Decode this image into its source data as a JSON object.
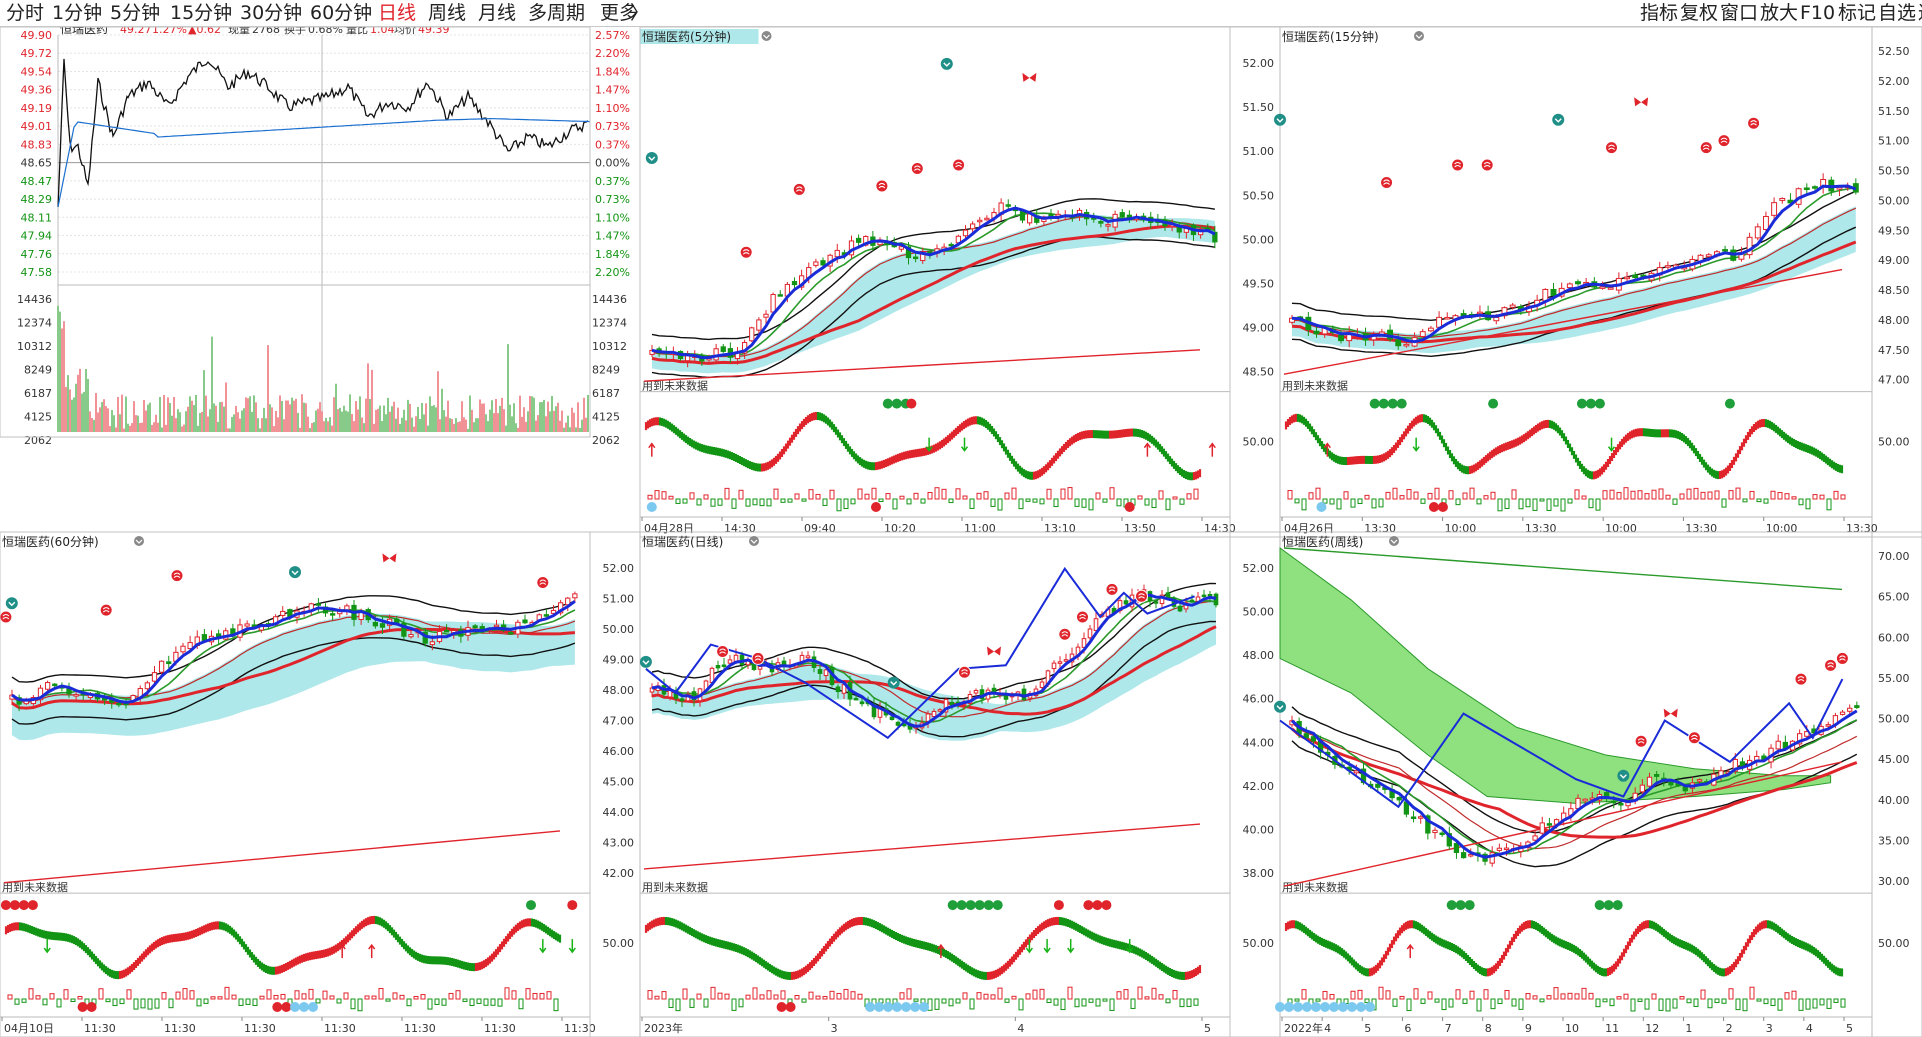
{
  "toolbar": {
    "periods": [
      {
        "label": "分时",
        "active": false
      },
      {
        "label": "1分钟",
        "active": false
      },
      {
        "label": "5分钟",
        "active": false
      },
      {
        "label": "15分钟",
        "active": false
      },
      {
        "label": "30分钟",
        "active": false
      },
      {
        "label": "60分钟",
        "active": false
      },
      {
        "label": "日线",
        "active": true
      },
      {
        "label": "周线",
        "active": false
      },
      {
        "label": "月线",
        "active": false
      },
      {
        "label": "多周期",
        "active": false
      },
      {
        "label": "更多",
        "active": false
      }
    ],
    "more_arrow": "〉",
    "right_tools": [
      "指标",
      "复权",
      "窗口",
      "放大",
      "F10",
      "标记",
      "自选",
      "返回"
    ]
  },
  "colors": {
    "up": "#e0242c",
    "down": "#129414",
    "ma": "#1b6fcf",
    "blue": "#1a2bd8",
    "grid": "#d6d6d6",
    "band": "#aee8ea"
  },
  "minute_panel": {
    "stock_name": "恒瑞医药",
    "price": "49.27",
    "change_pct": "1.27%",
    "change": "▲0.62",
    "volume_label": "现量",
    "volume": "2768",
    "turnover_label": "换手",
    "turnover": "0.68%",
    "vol_ratio_label": "量比",
    "vol_ratio": "1.04",
    "avg_label": "均价",
    "avg": "49.39",
    "price_axis": [
      "49.90",
      "49.72",
      "49.54",
      "49.36",
      "49.19",
      "49.01",
      "48.83",
      "48.65",
      "48.47",
      "48.29",
      "48.11",
      "47.94",
      "47.76",
      "47.58"
    ],
    "pct_axis": [
      "2.57%",
      "2.20%",
      "1.84%",
      "1.47%",
      "1.10%",
      "0.73%",
      "0.37%",
      "0.00%",
      "0.37%",
      "0.73%",
      "1.10%",
      "1.47%",
      "1.84%",
      "2.20%"
    ],
    "volume_axis": [
      "14436",
      "12374",
      "10312",
      "8249",
      "6187",
      "4125",
      "2062"
    ],
    "volume_axis_right": [
      "14436",
      "12374",
      "10312",
      "8249",
      "6187",
      "4125",
      "2062"
    ]
  },
  "charts": [
    {
      "id": "p5",
      "title": "恒瑞医药(5分钟)",
      "left_axis": [],
      "right_axis": [],
      "indicator_axis": [],
      "future_label": "用到未来数据",
      "x_labels": [
        "04月28日",
        "14:30",
        "09:40",
        "10:20",
        "11:00",
        "13:10",
        "13:50",
        "14:30"
      ]
    },
    {
      "id": "p15",
      "title": "恒瑞医药(15分钟)",
      "left_axis": [
        "52.00",
        "51.50",
        "51.00",
        "50.50",
        "50.00",
        "49.50",
        "49.00",
        "48.50"
      ],
      "right_axis": [
        "52.50",
        "52.00",
        "51.50",
        "51.00",
        "50.50",
        "50.00",
        "49.50",
        "49.00",
        "48.50",
        "48.00",
        "47.50",
        "47.00"
      ],
      "indicator_axis": [
        "50.00"
      ],
      "indicator_axis_right": [
        "50.00"
      ],
      "future_label": "用到未来数据",
      "x_labels": [
        "04月26日",
        "13:30",
        "10:00",
        "13:30",
        "10:00",
        "13:30",
        "10:00",
        "13:30"
      ]
    },
    {
      "id": "p60",
      "title": "恒瑞医药(60分钟)",
      "left_axis": [],
      "right_axis": [],
      "indicator_axis": [],
      "future_label": "用到未来数据",
      "x_labels": [
        "04月10日",
        "11:30",
        "11:30",
        "11:30",
        "11:30",
        "11:30",
        "11:30",
        "11:30"
      ]
    },
    {
      "id": "pd",
      "title": "恒瑞医药(日线)",
      "left_axis": [
        "52.00",
        "51.00",
        "50.00",
        "49.00",
        "48.00",
        "47.00",
        "46.00",
        "45.00",
        "44.00",
        "43.00",
        "42.00"
      ],
      "right_axis": [],
      "indicator_axis": [
        "50.00"
      ],
      "future_label": "用到未来数据",
      "x_labels": [
        "2023年",
        "3",
        "4",
        "5"
      ]
    },
    {
      "id": "pw",
      "title": "恒瑞医药(周线)",
      "left_axis": [
        "52.00",
        "50.00",
        "48.00",
        "46.00",
        "44.00",
        "42.00",
        "40.00",
        "38.00"
      ],
      "right_axis": [
        "70.00",
        "65.00",
        "60.00",
        "55.00",
        "50.00",
        "45.00",
        "40.00",
        "35.00",
        "30.00"
      ],
      "indicator_axis": [
        "50.00"
      ],
      "indicator_axis_right": [
        "50.00"
      ],
      "future_label": "用到未来数据",
      "x_labels": [
        "2022年",
        "4",
        "5",
        "6",
        "7",
        "8",
        "9",
        "10",
        "11",
        "12",
        "1",
        "2",
        "3",
        "4",
        "5"
      ]
    }
  ]
}
